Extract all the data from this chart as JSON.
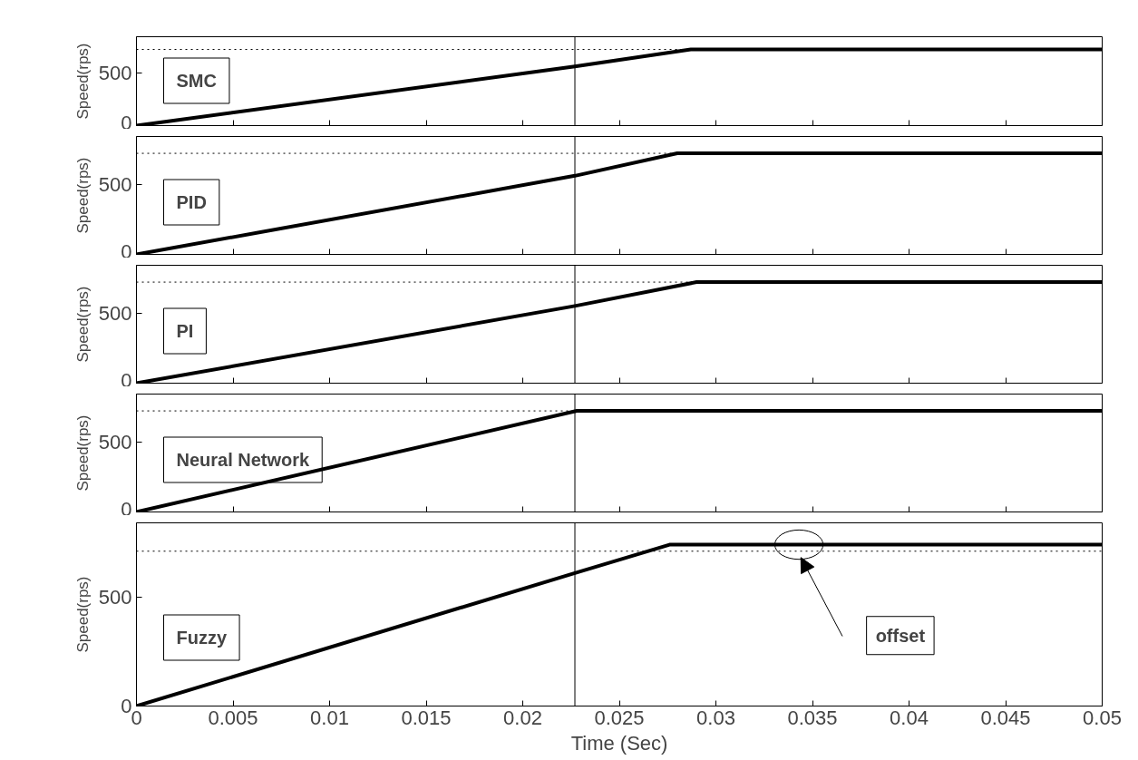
{
  "chart_data": [
    {
      "type": "line",
      "x": [
        0,
        0.0227,
        0.0287,
        0.05
      ],
      "series": [
        {
          "name": "SMC",
          "color": "#000000",
          "values": [
            0,
            560,
            720,
            720
          ]
        }
      ],
      "xlim": [
        0,
        0.05
      ],
      "xticks": [
        0,
        0.005,
        0.01,
        0.015,
        0.02,
        0.025,
        0.03,
        0.035,
        0.04,
        0.045,
        0.05
      ],
      "ylim": [
        0,
        840
      ],
      "yticks": [
        0,
        500
      ],
      "ylabel": "Speed(rps)",
      "tick_labels": "y",
      "grid": false,
      "ref_lines": [
        {
          "axis": "y",
          "value": 720,
          "line_style": "dotted"
        },
        {
          "axis": "x",
          "value": 0.0227
        }
      ]
    },
    {
      "type": "line",
      "x": [
        0,
        0.0227,
        0.028,
        0.05
      ],
      "series": [
        {
          "name": "PID",
          "color": "#000000",
          "values": [
            0,
            560,
            720,
            720
          ]
        }
      ],
      "xlim": [
        0,
        0.05
      ],
      "xticks": [
        0,
        0.005,
        0.01,
        0.015,
        0.02,
        0.025,
        0.03,
        0.035,
        0.04,
        0.045,
        0.05
      ],
      "ylim": [
        0,
        840
      ],
      "yticks": [
        0,
        500
      ],
      "ylabel": "Speed(rps)",
      "tick_labels": "y",
      "grid": false,
      "ref_lines": [
        {
          "axis": "y",
          "value": 720,
          "line_style": "dotted"
        },
        {
          "axis": "x",
          "value": 0.0227
        }
      ]
    },
    {
      "type": "line",
      "x": [
        0,
        0.0227,
        0.029,
        0.05
      ],
      "series": [
        {
          "name": "PI",
          "color": "#000000",
          "values": [
            0,
            550,
            720,
            720
          ]
        }
      ],
      "xlim": [
        0,
        0.05
      ],
      "xticks": [
        0,
        0.005,
        0.01,
        0.015,
        0.02,
        0.025,
        0.03,
        0.035,
        0.04,
        0.045,
        0.05
      ],
      "ylim": [
        0,
        840
      ],
      "yticks": [
        0,
        500
      ],
      "ylabel": "Speed(rps)",
      "tick_labels": "y",
      "grid": false,
      "ref_lines": [
        {
          "axis": "y",
          "value": 720,
          "line_style": "dotted"
        },
        {
          "axis": "x",
          "value": 0.0227
        }
      ]
    },
    {
      "type": "line",
      "x": [
        0,
        0.0228,
        0.05
      ],
      "series": [
        {
          "name": "Neural Network",
          "color": "#000000",
          "values": [
            0,
            720,
            720
          ]
        }
      ],
      "xlim": [
        0,
        0.05
      ],
      "xticks": [
        0,
        0.005,
        0.01,
        0.015,
        0.02,
        0.025,
        0.03,
        0.035,
        0.04,
        0.045,
        0.05
      ],
      "ylim": [
        0,
        840
      ],
      "yticks": [
        0,
        500
      ],
      "ylabel": "Speed(rps)",
      "tick_labels": "y",
      "grid": false,
      "ref_lines": [
        {
          "axis": "y",
          "value": 720,
          "line_style": "dotted"
        },
        {
          "axis": "x",
          "value": 0.0227
        }
      ]
    },
    {
      "type": "line",
      "x": [
        0,
        0.0227,
        0.0276,
        0.05
      ],
      "series": [
        {
          "name": "Fuzzy",
          "color": "#000000",
          "values": [
            0,
            610,
            740,
            740
          ]
        }
      ],
      "xlim": [
        0,
        0.05
      ],
      "xticks": [
        0,
        0.005,
        0.01,
        0.015,
        0.02,
        0.025,
        0.03,
        0.035,
        0.04,
        0.045,
        0.05
      ],
      "ylim": [
        0,
        840
      ],
      "yticks": [
        0,
        500
      ],
      "ylabel": "Speed(rps)",
      "xlabel": "Time (Sec)",
      "grid": false,
      "ref_lines": [
        {
          "axis": "y",
          "value": 710,
          "line_style": "dotted"
        },
        {
          "axis": "x",
          "value": 0.0227
        }
      ],
      "annotations": [
        "offset"
      ]
    }
  ]
}
